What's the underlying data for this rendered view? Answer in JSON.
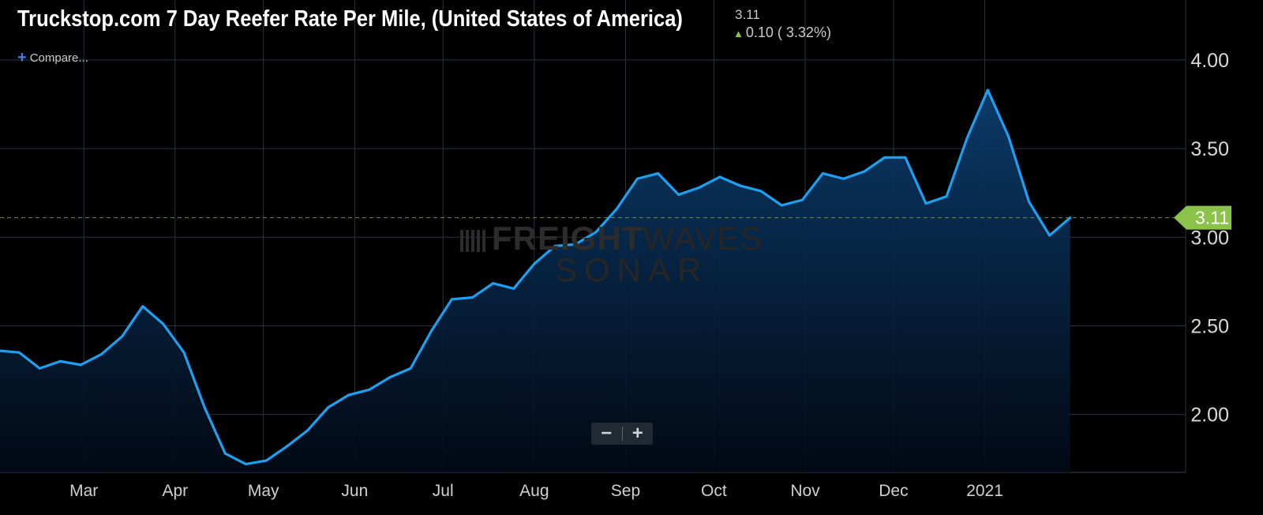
{
  "header": {
    "title": "Truckstop.com 7 Day Reefer Rate Per Mile, (United States of America)",
    "last_value": "3.11",
    "change_text": "0.10 ( 3.32%)",
    "compare_label": "Compare..."
  },
  "watermark": {
    "line1_bold": "FREIGHT",
    "line1_light": "WAVES",
    "line2": "SONAR"
  },
  "zoom": {
    "minus": "−",
    "plus": "+"
  },
  "colors": {
    "background": "#000000",
    "line": "#1ea0f0",
    "grid": "#2a3340",
    "last_value_badge": "#8bc34a",
    "dashed_last_line": "#6f8f3a"
  },
  "icons": [
    "up-arrow-icon",
    "plus-icon",
    "minus-icon",
    "freightwaves-logo-icon"
  ],
  "chart_data": {
    "type": "area",
    "x_tick_labels": [
      "Mar",
      "Apr",
      "May",
      "Jun",
      "Jul",
      "Aug",
      "Sep",
      "Oct",
      "Nov",
      "Dec",
      "2021"
    ],
    "y_tick_labels": [
      "2.00",
      "2.50",
      "3.00",
      "3.50",
      "4.00"
    ],
    "ylim": [
      1.67,
      4.32
    ],
    "last_value": 3.11,
    "last_value_label": "3.11",
    "grid": true,
    "x": [
      "2020-02-01",
      "2020-02-08",
      "2020-02-15",
      "2020-02-22",
      "2020-02-29",
      "2020-03-07",
      "2020-03-14",
      "2020-03-21",
      "2020-03-28",
      "2020-04-04",
      "2020-04-11",
      "2020-04-18",
      "2020-04-25",
      "2020-05-02",
      "2020-05-09",
      "2020-05-16",
      "2020-05-23",
      "2020-05-30",
      "2020-06-06",
      "2020-06-13",
      "2020-06-20",
      "2020-06-27",
      "2020-07-04",
      "2020-07-11",
      "2020-07-18",
      "2020-07-25",
      "2020-08-01",
      "2020-08-08",
      "2020-08-15",
      "2020-08-22",
      "2020-08-29",
      "2020-09-05",
      "2020-09-12",
      "2020-09-19",
      "2020-09-26",
      "2020-10-03",
      "2020-10-10",
      "2020-10-17",
      "2020-10-24",
      "2020-10-31",
      "2020-11-07",
      "2020-11-14",
      "2020-11-21",
      "2020-11-28",
      "2020-12-05",
      "2020-12-12",
      "2020-12-19",
      "2020-12-26",
      "2021-01-02",
      "2021-01-09",
      "2021-01-16",
      "2021-01-23",
      "2021-01-30"
    ],
    "values": [
      2.36,
      2.35,
      2.26,
      2.3,
      2.28,
      2.34,
      2.44,
      2.61,
      2.51,
      2.35,
      2.04,
      1.78,
      1.72,
      1.74,
      1.82,
      1.91,
      2.04,
      2.11,
      2.14,
      2.21,
      2.26,
      2.47,
      2.65,
      2.66,
      2.74,
      2.71,
      2.85,
      2.95,
      2.96,
      3.03,
      3.16,
      3.33,
      3.36,
      3.24,
      3.28,
      3.34,
      3.29,
      3.26,
      3.18,
      3.21,
      3.36,
      3.33,
      3.37,
      3.45,
      3.45,
      3.19,
      3.23,
      3.56,
      3.83,
      3.57,
      3.2,
      3.01,
      3.11
    ]
  }
}
